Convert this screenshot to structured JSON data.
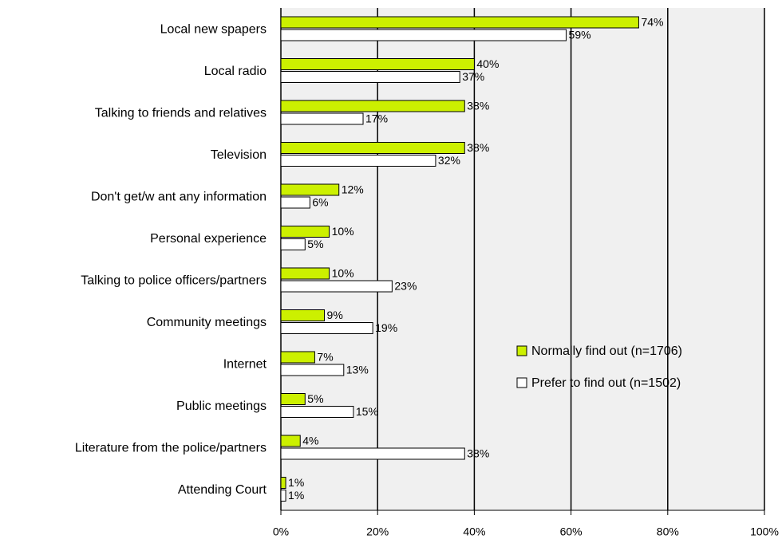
{
  "chart_data": {
    "type": "hbar",
    "categories": [
      "Local new spapers",
      "Local radio",
      "Talking to friends and relatives",
      "Television",
      "Don't get/w ant any information",
      "Personal experience",
      "Talking to police officers/partners",
      "Community meetings",
      "Internet",
      "Public meetings",
      "Literature from the police/partners",
      "Attending Court"
    ],
    "series": [
      {
        "name": "Normally find out (n=1706)",
        "color": "#ccf000",
        "values": [
          74,
          40,
          38,
          38,
          12,
          10,
          10,
          9,
          7,
          5,
          4,
          1
        ],
        "value_labels": [
          "74%",
          "40%",
          "38%",
          "38%",
          "12%",
          "10%",
          "10%",
          "9%",
          "7%",
          "5%",
          "4%",
          "1%"
        ]
      },
      {
        "name": "Prefer to find out (n=1502)",
        "color": "#ffffff",
        "values": [
          59,
          37,
          17,
          32,
          6,
          5,
          23,
          19,
          13,
          15,
          38,
          1
        ],
        "value_labels": [
          "59%",
          "37%",
          "17%",
          "32%",
          "6%",
          "5%",
          "23%",
          "19%",
          "13%",
          "15%",
          "38%",
          "1%"
        ]
      }
    ],
    "xlim": [
      0,
      100
    ],
    "xticks": [
      {
        "value": 0,
        "label": "0%"
      },
      {
        "value": 20,
        "label": "20%"
      },
      {
        "value": 40,
        "label": "40%"
      },
      {
        "value": 60,
        "label": "60%"
      },
      {
        "value": 80,
        "label": "80%"
      },
      {
        "value": 100,
        "label": "100%"
      }
    ],
    "grid": true,
    "legend": "right"
  }
}
